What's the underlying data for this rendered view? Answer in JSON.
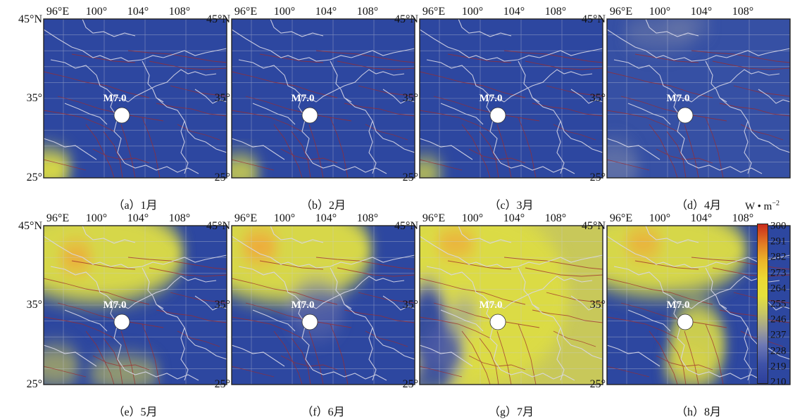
{
  "x_ticks": [
    "96°E",
    "100°",
    "104°",
    "108°"
  ],
  "y_ticks": [
    "45°N",
    "35°",
    "25°"
  ],
  "epicenter_label": "M7.0",
  "panels": [
    {
      "caption": "（a）1月",
      "field": "jan"
    },
    {
      "caption": "（b）2月",
      "field": "feb"
    },
    {
      "caption": "（c）3月",
      "field": "mar"
    },
    {
      "caption": "（d）4月",
      "field": "apr"
    },
    {
      "caption": "（e）5月",
      "field": "may"
    },
    {
      "caption": "（f）6月",
      "field": "jun"
    },
    {
      "caption": "（g）7月",
      "field": "jul"
    },
    {
      "caption": "（h）8月",
      "field": "aug"
    }
  ],
  "colorbar": {
    "unit": "W • m",
    "unit_exp": "−2",
    "ticks": [
      "300",
      "291",
      "282",
      "273",
      "264",
      "255",
      "246",
      "237",
      "228",
      "219",
      "210"
    ],
    "colors": [
      "#2c3f9b",
      "#6d78b5",
      "#c7c564",
      "#e4e03c",
      "#ecb529",
      "#c92b1c"
    ]
  },
  "colors": {
    "low": "#2d47a0",
    "mid": "#7f88a8",
    "high": "#dcdc45",
    "peak": "#f0a63a",
    "boundary": "#d8d8e8",
    "fault": "#a02a2a"
  }
}
